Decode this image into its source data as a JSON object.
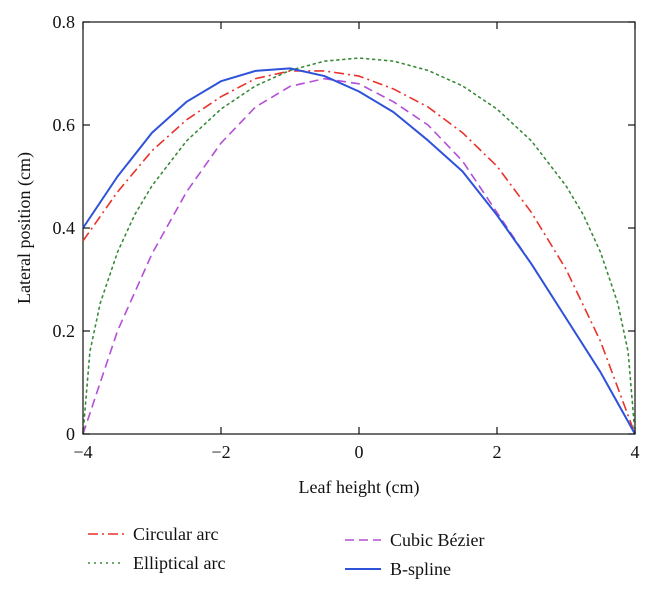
{
  "chart_data": {
    "type": "line",
    "title": "",
    "xlabel": "Leaf height (cm)",
    "ylabel": "Lateral position (cm)",
    "xlim": [
      -4,
      4
    ],
    "ylim": [
      0,
      0.8
    ],
    "xticks": [
      -4,
      -2,
      0,
      2,
      4
    ],
    "yticks": [
      0,
      0.2,
      0.4,
      0.6,
      0.8
    ],
    "xtick_labels": [
      "−4",
      "−2",
      "0",
      "2",
      "4"
    ],
    "ytick_labels": [
      "0",
      "0.2",
      "0.4",
      "0.6",
      "0.8"
    ],
    "grid": false,
    "legend_position": "below",
    "series": [
      {
        "name": "Circular arc",
        "color": "#e8322a",
        "style": "dashdot",
        "x": [
          -4,
          -3.5,
          -3,
          -2.5,
          -2,
          -1.5,
          -1,
          -0.5,
          0,
          0.5,
          1,
          1.5,
          2,
          2.5,
          3,
          3.5,
          4
        ],
        "y": [
          0.375,
          0.47,
          0.55,
          0.61,
          0.655,
          0.69,
          0.705,
          0.705,
          0.695,
          0.67,
          0.635,
          0.585,
          0.52,
          0.43,
          0.32,
          0.18,
          0.0
        ]
      },
      {
        "name": "Elliptical arc",
        "color": "#3a8a3a",
        "style": "dotted",
        "x": [
          -4,
          -3.9,
          -3.75,
          -3.5,
          -3.25,
          -3,
          -2.5,
          -2,
          -1.5,
          -1,
          -0.5,
          0,
          0.5,
          1,
          1.5,
          2,
          2.5,
          3,
          3.25,
          3.5,
          3.75,
          3.9,
          4
        ],
        "y": [
          0.0,
          0.16,
          0.254,
          0.353,
          0.426,
          0.482,
          0.569,
          0.631,
          0.676,
          0.706,
          0.724,
          0.73,
          0.724,
          0.706,
          0.676,
          0.631,
          0.569,
          0.482,
          0.426,
          0.353,
          0.254,
          0.16,
          0.0
        ]
      },
      {
        "name": "Cubic Bézier",
        "color": "#b44fd6",
        "style": "dashed",
        "x": [
          -4,
          -3.5,
          -3,
          -2.5,
          -2,
          -1.5,
          -1,
          -0.5,
          0,
          0.5,
          1,
          1.5,
          2,
          2.5,
          3,
          3.5,
          4
        ],
        "y": [
          0.0,
          0.2,
          0.35,
          0.47,
          0.565,
          0.635,
          0.675,
          0.69,
          0.68,
          0.645,
          0.6,
          0.53,
          0.43,
          0.33,
          0.225,
          0.12,
          0.0
        ]
      },
      {
        "name": "B-spline",
        "color": "#2e52d9",
        "style": "solid",
        "x": [
          -4,
          -3.5,
          -3,
          -2.5,
          -2,
          -1.5,
          -1,
          -0.5,
          0,
          0.5,
          1,
          1.5,
          2,
          2.5,
          3,
          3.5,
          4
        ],
        "y": [
          0.4,
          0.5,
          0.585,
          0.645,
          0.685,
          0.705,
          0.71,
          0.695,
          0.665,
          0.625,
          0.57,
          0.51,
          0.425,
          0.33,
          0.225,
          0.12,
          0.0
        ]
      }
    ]
  }
}
